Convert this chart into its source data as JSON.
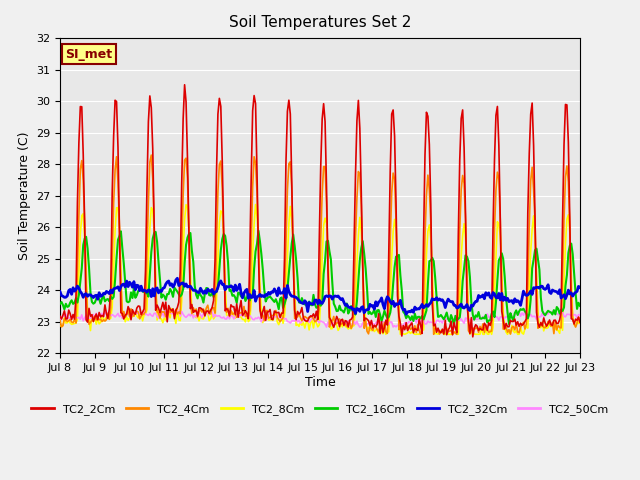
{
  "title": "Soil Temperatures Set 2",
  "ylabel": "Soil Temperature (C)",
  "xlabel": "Time",
  "ylim": [
    22.0,
    32.0
  ],
  "yticks": [
    22.0,
    23.0,
    24.0,
    25.0,
    26.0,
    27.0,
    28.0,
    29.0,
    30.0,
    31.0,
    32.0
  ],
  "xtick_labels": [
    "Jul 8",
    "Jul 9",
    "Jul 10",
    "Jul 11",
    "Jul 12",
    "Jul 13",
    "Jul 14",
    "Jul 15",
    "Jul 16",
    "Jul 17",
    "Jul 18",
    "Jul 19",
    "Jul 20",
    "Jul 21",
    "Jul 22",
    "Jul 23"
  ],
  "series_colors": {
    "TC2_2Cm": "#dd0000",
    "TC2_4Cm": "#ff8800",
    "TC2_8Cm": "#ffff00",
    "TC2_16Cm": "#00cc00",
    "TC2_32Cm": "#0000dd",
    "TC2_50Cm": "#ff88ff"
  },
  "series_linewidths": {
    "TC2_2Cm": 1.2,
    "TC2_4Cm": 1.2,
    "TC2_8Cm": 1.2,
    "TC2_16Cm": 1.5,
    "TC2_32Cm": 2.0,
    "TC2_50Cm": 1.2
  },
  "background_color": "#e8e8e8",
  "si_met_label": "SI_met",
  "si_met_bg": "#ffff88",
  "si_met_border": "#880000",
  "n_points": 360
}
